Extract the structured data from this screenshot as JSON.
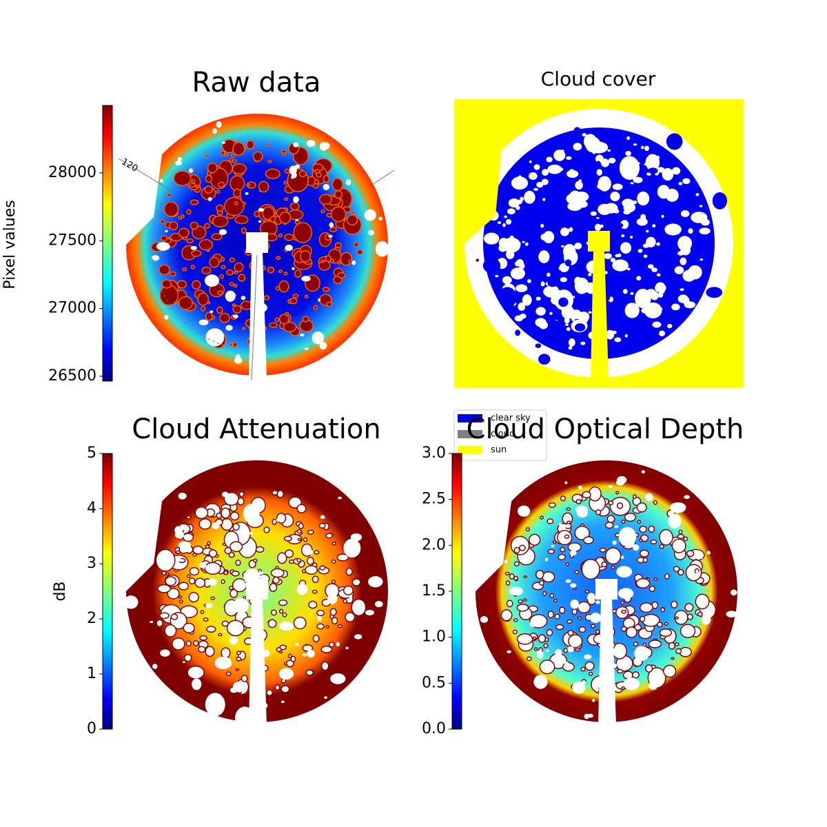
{
  "chart_data": [
    {
      "type": "image",
      "title": "Raw data",
      "colormap": "jet",
      "colorbar": {
        "label": "Pixel values",
        "clim": [
          26464,
          28498
        ],
        "ticks": [
          26500,
          27000,
          27500,
          28000
        ]
      },
      "annotations": [
        "120"
      ]
    },
    {
      "type": "categorical-image",
      "title": "Cloud cover",
      "series": [
        {
          "name": "clear sky",
          "color": "#0000ee"
        },
        {
          "name": "cloud",
          "color": "#808080"
        },
        {
          "name": "sun",
          "color": "#ffff00"
        }
      ]
    },
    {
      "type": "image",
      "title": "Cloud Attenuation",
      "colormap": "jet",
      "colorbar": {
        "label": "dB",
        "clim": [
          0,
          5
        ],
        "ticks": [
          0,
          1,
          2,
          3,
          4,
          5
        ]
      }
    },
    {
      "type": "image",
      "title": "Cloud Optical Depth",
      "colormap": "jet",
      "colorbar": {
        "clim": [
          0,
          3
        ],
        "ticks": [
          {
            "value": 0,
            "label": "0.0"
          },
          {
            "value": 0.5,
            "label": "0.5"
          },
          {
            "value": 1,
            "label": "1.0"
          },
          {
            "value": 1.5,
            "label": "1.5"
          },
          {
            "value": 2,
            "label": "2.0"
          },
          {
            "value": 2.5,
            "label": "2.5"
          },
          {
            "value": 3,
            "label": "3.0"
          }
        ]
      }
    }
  ]
}
